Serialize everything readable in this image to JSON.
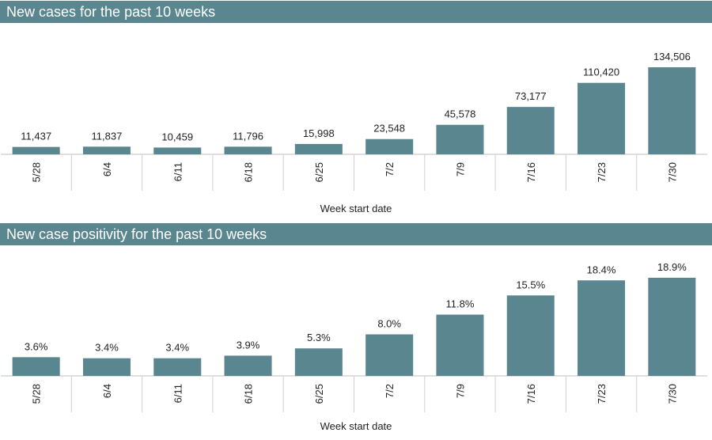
{
  "chart_data": [
    {
      "type": "bar",
      "title": "New cases for the past 10 weeks",
      "xlabel": "Week start date",
      "categories": [
        "5/28",
        "6/4",
        "6/11",
        "6/18",
        "6/25",
        "7/2",
        "7/9",
        "7/16",
        "7/23",
        "7/30"
      ],
      "values": [
        11437,
        11837,
        10459,
        11796,
        15998,
        23548,
        45578,
        73177,
        110420,
        134506
      ],
      "value_labels": [
        "11,437",
        "11,837",
        "10,459",
        "11,796",
        "15,998",
        "23,548",
        "45,578",
        "73,177",
        "110,420",
        "134,506"
      ],
      "ylim": [
        0,
        140000
      ],
      "grid": false,
      "bar_color": "#5a8690"
    },
    {
      "type": "bar",
      "title": "New case positivity for the past 10 weeks",
      "xlabel": "Week start date",
      "categories": [
        "5/28",
        "6/4",
        "6/11",
        "6/18",
        "6/25",
        "7/2",
        "7/9",
        "7/16",
        "7/23",
        "7/30"
      ],
      "values": [
        3.6,
        3.4,
        3.4,
        3.9,
        5.3,
        8.0,
        11.8,
        15.5,
        18.4,
        18.9
      ],
      "value_labels": [
        "3.6%",
        "3.4%",
        "3.4%",
        "3.9%",
        "5.3%",
        "8.0%",
        "11.8%",
        "15.5%",
        "18.4%",
        "18.9%"
      ],
      "ylim": [
        0,
        20
      ],
      "grid": false,
      "bar_color": "#5a8690"
    }
  ]
}
